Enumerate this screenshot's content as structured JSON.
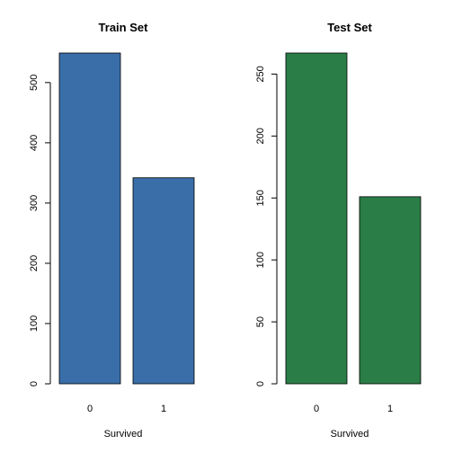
{
  "chart_data": [
    {
      "type": "bar",
      "title": "Train Set",
      "xlabel": "Survived",
      "ylabel": "",
      "categories": [
        "0",
        "1"
      ],
      "values": [
        549,
        342
      ],
      "yticks": [
        0,
        100,
        200,
        300,
        400,
        500
      ],
      "ylim": [
        0,
        549
      ],
      "color": "#3a6ea8"
    },
    {
      "type": "bar",
      "title": "Test Set",
      "xlabel": "Survived",
      "ylabel": "",
      "categories": [
        "0",
        "1"
      ],
      "values": [
        267,
        151
      ],
      "yticks": [
        0,
        50,
        100,
        150,
        200,
        250
      ],
      "ylim": [
        0,
        267
      ],
      "color": "#2a7d47"
    }
  ]
}
